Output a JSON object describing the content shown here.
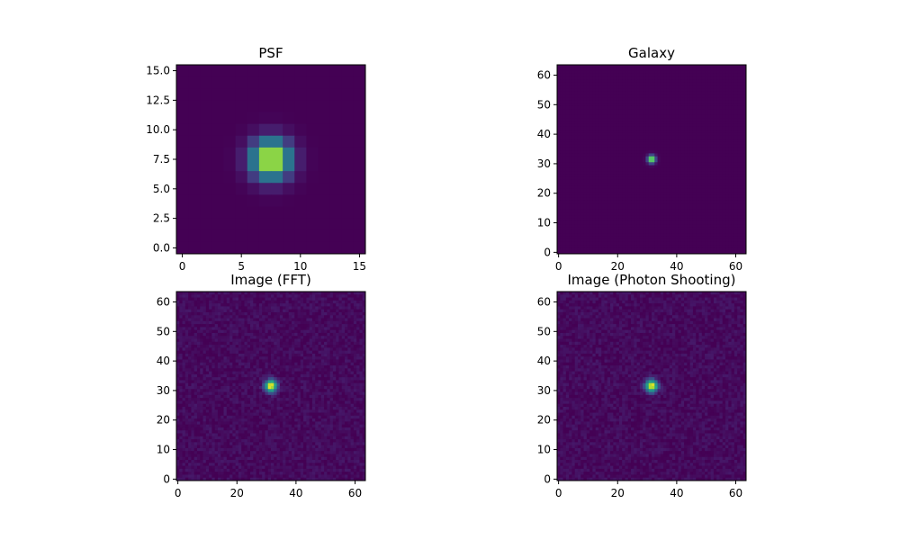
{
  "figure": {
    "background": "#ffffff"
  },
  "chart_data": [
    {
      "type": "heatmap",
      "title": "PSF",
      "xlabel": "",
      "ylabel": "",
      "image_size": [
        16,
        16
      ],
      "xlim": [
        -0.5,
        15.5
      ],
      "ylim": [
        15.5,
        -0.5
      ],
      "xticks": [
        0,
        5,
        10,
        15
      ],
      "xtick_labels": [
        "0",
        "5",
        "10",
        "15"
      ],
      "yticks": [
        0,
        2.5,
        5,
        7.5,
        10,
        12.5,
        15
      ],
      "ytick_labels": [
        "0.0",
        "2.5",
        "5.0",
        "7.5",
        "10.0",
        "12.5",
        "15.0"
      ],
      "colormap": "viridis",
      "source": {
        "kind": "gaussian",
        "center": [
          7.5,
          7.5
        ],
        "sigma": 1.15,
        "peak": 1.0
      },
      "noise": 0,
      "grid": false
    },
    {
      "type": "heatmap",
      "title": "Galaxy",
      "xlabel": "",
      "ylabel": "",
      "image_size": [
        64,
        64
      ],
      "xlim": [
        -0.5,
        63.5
      ],
      "ylim": [
        63.5,
        -0.5
      ],
      "xticks": [
        0,
        20,
        40,
        60
      ],
      "xtick_labels": [
        "0",
        "20",
        "40",
        "60"
      ],
      "yticks": [
        0,
        10,
        20,
        30,
        40,
        50,
        60
      ],
      "ytick_labels": [
        "0",
        "10",
        "20",
        "30",
        "40",
        "50",
        "60"
      ],
      "colormap": "viridis",
      "source": {
        "kind": "gaussian",
        "center": [
          31.5,
          31.5
        ],
        "sigma": 0.9,
        "peak": 1.0
      },
      "noise": 0,
      "grid": false
    },
    {
      "type": "heatmap",
      "title": "Image (FFT)",
      "xlabel": "",
      "ylabel": "",
      "image_size": [
        64,
        64
      ],
      "xlim": [
        -0.5,
        63.5
      ],
      "ylim": [
        63.5,
        -0.5
      ],
      "xticks": [
        0,
        20,
        40,
        60
      ],
      "xtick_labels": [
        "0",
        "20",
        "40",
        "60"
      ],
      "yticks": [
        0,
        10,
        20,
        30,
        40,
        50,
        60
      ],
      "ytick_labels": [
        "0",
        "10",
        "20",
        "30",
        "40",
        "50",
        "60"
      ],
      "colormap": "viridis",
      "source": {
        "kind": "gaussian",
        "center": [
          31.5,
          31.5
        ],
        "sigma": 1.4,
        "peak": 1.0
      },
      "noise": 0.045,
      "grid": false
    },
    {
      "type": "heatmap",
      "title": "Image (Photon Shooting)",
      "xlabel": "",
      "ylabel": "",
      "image_size": [
        64,
        64
      ],
      "xlim": [
        -0.5,
        63.5
      ],
      "ylim": [
        63.5,
        -0.5
      ],
      "xticks": [
        0,
        20,
        40,
        60
      ],
      "xtick_labels": [
        "0",
        "20",
        "40",
        "60"
      ],
      "yticks": [
        0,
        10,
        20,
        30,
        40,
        50,
        60
      ],
      "ytick_labels": [
        "0",
        "10",
        "20",
        "30",
        "40",
        "50",
        "60"
      ],
      "colormap": "viridis",
      "source": {
        "kind": "gaussian",
        "center": [
          31.5,
          31.5
        ],
        "sigma": 1.4,
        "peak": 1.0
      },
      "noise": 0.045,
      "grid": false
    }
  ]
}
